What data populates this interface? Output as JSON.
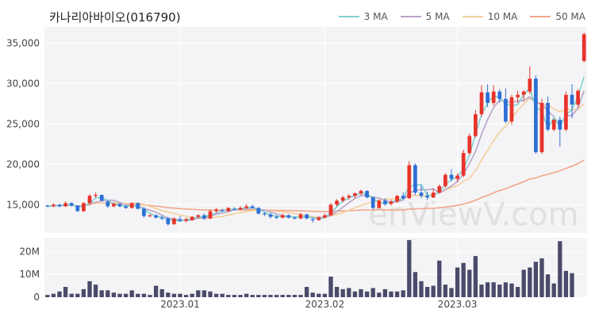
{
  "title": "카나리아바이오(016790)",
  "watermark": "enViewV.com",
  "legend": [
    {
      "label": "3 MA",
      "color": "#7fd1d0"
    },
    {
      "label": "5 MA",
      "color": "#b9a3c9"
    },
    {
      "label": "10 MA",
      "color": "#f3cf9a"
    },
    {
      "label": "50 MA",
      "color": "#f0a68a"
    }
  ],
  "colors": {
    "up": "#e8332a",
    "down": "#2d6fd6",
    "volume": "#4a4a6a",
    "grid": "#e6e6e6",
    "panel": "#f4f4f6"
  },
  "chart_data": {
    "type": "candlestick",
    "price_yticks": [
      15000,
      20000,
      25000,
      30000,
      35000
    ],
    "price_ytick_labels": [
      "15,000",
      "20,000",
      "25,000",
      "30,000",
      "35,000"
    ],
    "price_ylim": [
      11500,
      37000
    ],
    "volume_yticks": [
      0,
      10000000,
      20000000
    ],
    "volume_ytick_labels": [
      "0",
      "10M",
      "20M"
    ],
    "volume_ylim": [
      0,
      26000000
    ],
    "xtick_labels": [
      {
        "label": "2023.01",
        "index": 22
      },
      {
        "label": "2023.02",
        "index": 46
      },
      {
        "label": "2023.03",
        "index": 68
      }
    ],
    "candles": [
      [
        14900,
        15000,
        14700,
        14800
      ],
      [
        14800,
        15200,
        14700,
        15000
      ],
      [
        15000,
        15100,
        14700,
        14800
      ],
      [
        14800,
        15400,
        14700,
        15200
      ],
      [
        15200,
        15300,
        14800,
        14900
      ],
      [
        14900,
        14950,
        14100,
        14200
      ],
      [
        14200,
        15300,
        14100,
        15200
      ],
      [
        15200,
        16300,
        14900,
        16100
      ],
      [
        16100,
        16500,
        15900,
        16200
      ],
      [
        16200,
        16300,
        15400,
        15500
      ],
      [
        15400,
        15500,
        14600,
        14800
      ],
      [
        14800,
        15300,
        14700,
        15100
      ],
      [
        15100,
        15200,
        14700,
        14800
      ],
      [
        14800,
        14900,
        14500,
        14600
      ],
      [
        14600,
        15300,
        14500,
        15200
      ],
      [
        15200,
        15300,
        14400,
        14500
      ],
      [
        14500,
        14700,
        13400,
        13600
      ],
      [
        13600,
        13800,
        13400,
        13700
      ],
      [
        13700,
        13800,
        13300,
        13400
      ],
      [
        13400,
        13600,
        13100,
        13300
      ],
      [
        13300,
        13500,
        12400,
        12600
      ],
      [
        12600,
        13400,
        12500,
        13300
      ],
      [
        13200,
        13600,
        12900,
        13000
      ],
      [
        13000,
        13400,
        12800,
        13200
      ],
      [
        13100,
        13600,
        13000,
        13500
      ],
      [
        13500,
        13800,
        13300,
        13700
      ],
      [
        13700,
        13900,
        13100,
        13300
      ],
      [
        13300,
        14400,
        13200,
        14200
      ],
      [
        14200,
        14600,
        14000,
        14400
      ],
      [
        14300,
        14500,
        14100,
        14200
      ],
      [
        14200,
        14700,
        14100,
        14600
      ],
      [
        14500,
        14700,
        14300,
        14400
      ],
      [
        14400,
        14800,
        14300,
        14600
      ],
      [
        14600,
        15100,
        14500,
        14800
      ],
      [
        14800,
        15000,
        14500,
        14600
      ],
      [
        14600,
        14700,
        13800,
        13900
      ],
      [
        13900,
        14100,
        13600,
        13800
      ],
      [
        13800,
        14000,
        13300,
        13500
      ],
      [
        13500,
        13700,
        13200,
        13400
      ],
      [
        13400,
        13900,
        13300,
        13700
      ],
      [
        13700,
        13800,
        13300,
        13400
      ],
      [
        13400,
        13600,
        13200,
        13300
      ],
      [
        13300,
        14000,
        13200,
        13800
      ],
      [
        13800,
        13900,
        13200,
        13300
      ],
      [
        13200,
        13400,
        12800,
        13100
      ],
      [
        13100,
        13600,
        13000,
        13400
      ],
      [
        13400,
        13900,
        13300,
        13700
      ],
      [
        13700,
        15200,
        13600,
        15000
      ],
      [
        15000,
        15700,
        14800,
        15500
      ],
      [
        15500,
        16100,
        15300,
        15900
      ],
      [
        15900,
        16300,
        15600,
        16100
      ],
      [
        16100,
        16500,
        15800,
        16400
      ],
      [
        16400,
        16900,
        16200,
        16700
      ],
      [
        16700,
        16800,
        15800,
        15900
      ],
      [
        15900,
        16000,
        14400,
        14600
      ],
      [
        14600,
        15700,
        14500,
        15500
      ],
      [
        15500,
        15800,
        14900,
        15100
      ],
      [
        15100,
        15600,
        14900,
        15400
      ],
      [
        15400,
        16200,
        15300,
        16100
      ],
      [
        16100,
        16500,
        15700,
        15800
      ],
      [
        15800,
        20400,
        15700,
        19900
      ],
      [
        19900,
        20100,
        16200,
        16500
      ],
      [
        16500,
        17400,
        15800,
        16100
      ],
      [
        16100,
        16600,
        15600,
        15900
      ],
      [
        15900,
        17000,
        15800,
        16500
      ],
      [
        16500,
        17500,
        16400,
        17300
      ],
      [
        17300,
        18900,
        17100,
        18700
      ],
      [
        18700,
        19400,
        17900,
        18200
      ],
      [
        18200,
        18900,
        17800,
        18600
      ],
      [
        18600,
        21800,
        18400,
        21400
      ],
      [
        21400,
        23800,
        21200,
        23500
      ],
      [
        23500,
        26700,
        23300,
        26200
      ],
      [
        26200,
        29800,
        25900,
        28900
      ],
      [
        28900,
        29900,
        27100,
        27600
      ],
      [
        27600,
        29800,
        27300,
        29000
      ],
      [
        29000,
        29300,
        27600,
        28100
      ],
      [
        28100,
        29400,
        25100,
        25300
      ],
      [
        25300,
        28600,
        24900,
        28300
      ],
      [
        28300,
        29100,
        27600,
        28600
      ],
      [
        28600,
        29200,
        27900,
        29000
      ],
      [
        29000,
        32100,
        28700,
        30600
      ],
      [
        30600,
        31000,
        21300,
        21500
      ],
      [
        21500,
        28100,
        21300,
        27600
      ],
      [
        27600,
        28400,
        24100,
        24300
      ],
      [
        24300,
        25600,
        24100,
        25500
      ],
      [
        25500,
        25900,
        22200,
        24300
      ],
      [
        24300,
        29000,
        24100,
        28600
      ],
      [
        28600,
        29900,
        25700,
        27400
      ],
      [
        27400,
        29300,
        27000,
        29100
      ],
      [
        32800,
        36300,
        32600,
        36100
      ]
    ],
    "volumes": [
      1.0,
      1.5,
      2.5,
      4.5,
      1.5,
      1.5,
      3.5,
      7.0,
      5.5,
      3.0,
      3.0,
      2.0,
      1.5,
      1.5,
      3.0,
      1.5,
      1.5,
      1.0,
      5.0,
      3.5,
      2.0,
      1.5,
      1.5,
      1.0,
      1.5,
      3.0,
      3.0,
      2.5,
      1.5,
      1.5,
      1.0,
      1.0,
      1.0,
      1.5,
      1.0,
      1.0,
      1.0,
      1.0,
      1.0,
      1.0,
      1.0,
      1.0,
      1.0,
      4.5,
      2.0,
      1.5,
      1.5,
      9.0,
      4.5,
      3.5,
      4.0,
      2.5,
      3.5,
      2.5,
      4.0,
      2.0,
      3.5,
      2.5,
      2.5,
      3.0,
      25.0,
      11.0,
      7.0,
      4.5,
      5.0,
      16.0,
      5.5,
      4.0,
      13.0,
      15.0,
      12.0,
      18.0,
      5.5,
      6.5,
      6.5,
      5.5,
      6.5,
      6.0,
      4.5,
      12.0,
      13.0,
      15.5,
      17.0,
      10.0,
      6.0,
      24.5,
      11.5,
      10.5
    ]
  }
}
